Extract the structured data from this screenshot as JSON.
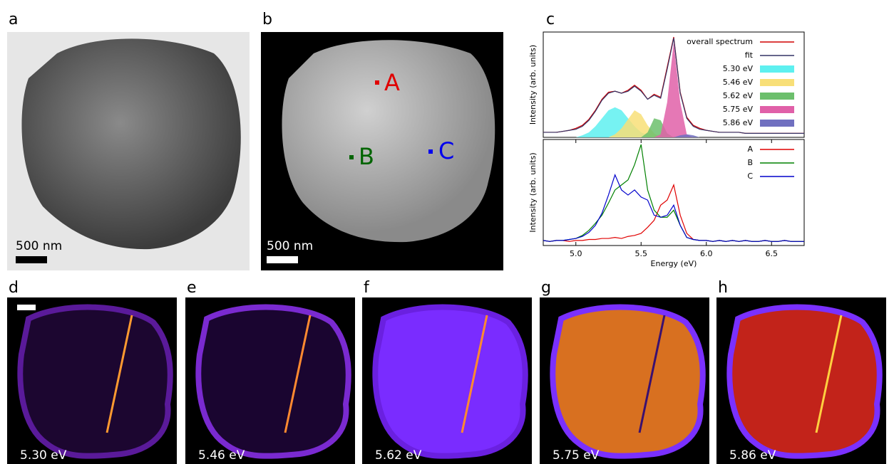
{
  "panels": {
    "a": {
      "letter": "a",
      "scale_bar": "500 nm"
    },
    "b": {
      "letter": "b",
      "scale_bar": "500 nm",
      "markers": [
        "A",
        "B",
        "C"
      ]
    },
    "c": {
      "letter": "c"
    },
    "maps": [
      {
        "letter": "d",
        "label": "5.30 eV"
      },
      {
        "letter": "e",
        "label": "5.46 eV"
      },
      {
        "letter": "f",
        "label": "5.62 eV"
      },
      {
        "letter": "g",
        "label": "5.75 eV"
      },
      {
        "letter": "h",
        "label": "5.86 eV"
      }
    ]
  },
  "chart_data": [
    {
      "type": "line",
      "ylabel": "Intensity (arb. units)",
      "legend": "upper right",
      "x": [
        4.75,
        4.8,
        4.85,
        4.9,
        4.95,
        5.0,
        5.05,
        5.1,
        5.15,
        5.2,
        5.25,
        5.3,
        5.35,
        5.4,
        5.45,
        5.5,
        5.55,
        5.6,
        5.65,
        5.7,
        5.75,
        5.8,
        5.85,
        5.9,
        5.95,
        6.0,
        6.05,
        6.1,
        6.15,
        6.2,
        6.25,
        6.3,
        6.35,
        6.4,
        6.45,
        6.5,
        6.55,
        6.6,
        6.65,
        6.7,
        6.75
      ],
      "xlim": [
        4.75,
        6.75
      ],
      "ylim": [
        0,
        1.05
      ],
      "series": [
        {
          "name": "overall spectrum",
          "color": "#d00000",
          "style": "line",
          "values": [
            0.05,
            0.05,
            0.05,
            0.06,
            0.07,
            0.09,
            0.12,
            0.18,
            0.27,
            0.38,
            0.45,
            0.46,
            0.44,
            0.47,
            0.52,
            0.47,
            0.38,
            0.43,
            0.4,
            0.7,
            1.0,
            0.45,
            0.2,
            0.12,
            0.09,
            0.07,
            0.06,
            0.05,
            0.05,
            0.05,
            0.05,
            0.04,
            0.04,
            0.04,
            0.04,
            0.04,
            0.04,
            0.04,
            0.04,
            0.04,
            0.04
          ]
        },
        {
          "name": "fit",
          "color": "#333366",
          "style": "line",
          "values": [
            0.05,
            0.05,
            0.05,
            0.06,
            0.07,
            0.08,
            0.11,
            0.17,
            0.26,
            0.37,
            0.44,
            0.46,
            0.44,
            0.46,
            0.51,
            0.46,
            0.38,
            0.42,
            0.39,
            0.68,
            0.99,
            0.44,
            0.19,
            0.11,
            0.08,
            0.07,
            0.06,
            0.05,
            0.05,
            0.05,
            0.05,
            0.04,
            0.04,
            0.04,
            0.04,
            0.04,
            0.04,
            0.04,
            0.04,
            0.04,
            0.04
          ]
        },
        {
          "name": "5.30 eV",
          "color": "#5ef0f0",
          "style": "area",
          "values": [
            0,
            0,
            0,
            0,
            0,
            0,
            0.02,
            0.05,
            0.11,
            0.19,
            0.27,
            0.3,
            0.27,
            0.19,
            0.11,
            0.05,
            0.02,
            0,
            0,
            0,
            0,
            0,
            0,
            0,
            0,
            0,
            0,
            0,
            0,
            0,
            0,
            0,
            0,
            0,
            0,
            0,
            0,
            0,
            0,
            0,
            0
          ]
        },
        {
          "name": "5.46 eV",
          "color": "#f8df78",
          "style": "area",
          "values": [
            0,
            0,
            0,
            0,
            0,
            0,
            0,
            0,
            0,
            0,
            0,
            0.03,
            0.09,
            0.18,
            0.27,
            0.23,
            0.12,
            0.04,
            0,
            0,
            0,
            0,
            0,
            0,
            0,
            0,
            0,
            0,
            0,
            0,
            0,
            0,
            0,
            0,
            0,
            0,
            0,
            0,
            0,
            0,
            0
          ]
        },
        {
          "name": "5.62 eV",
          "color": "#6cbf6c",
          "style": "area",
          "values": [
            0,
            0,
            0,
            0,
            0,
            0,
            0,
            0,
            0,
            0,
            0,
            0,
            0,
            0,
            0,
            0,
            0.05,
            0.19,
            0.17,
            0.04,
            0,
            0,
            0,
            0,
            0,
            0,
            0,
            0,
            0,
            0,
            0,
            0,
            0,
            0,
            0,
            0,
            0,
            0,
            0,
            0,
            0
          ]
        },
        {
          "name": "5.75 eV",
          "color": "#e060a8",
          "style": "area",
          "values": [
            0,
            0,
            0,
            0,
            0,
            0,
            0,
            0,
            0,
            0,
            0,
            0,
            0,
            0,
            0,
            0,
            0,
            0,
            0.03,
            0.35,
            0.95,
            0.35,
            0.03,
            0,
            0,
            0,
            0,
            0,
            0,
            0,
            0,
            0,
            0,
            0,
            0,
            0,
            0,
            0,
            0,
            0,
            0
          ]
        },
        {
          "name": "5.86 eV",
          "color": "#7070c0",
          "style": "area",
          "values": [
            0,
            0,
            0,
            0,
            0,
            0,
            0,
            0,
            0,
            0,
            0,
            0,
            0,
            0,
            0,
            0,
            0,
            0,
            0,
            0,
            0,
            0.02,
            0.03,
            0.02,
            0,
            0,
            0,
            0,
            0,
            0,
            0,
            0,
            0,
            0,
            0,
            0,
            0,
            0,
            0,
            0,
            0
          ]
        }
      ]
    },
    {
      "type": "line",
      "ylabel": "Intensity (arb. units)",
      "xlabel": "Energy (eV)",
      "legend": "upper right",
      "x": [
        4.75,
        4.8,
        4.85,
        4.9,
        4.95,
        5.0,
        5.05,
        5.1,
        5.15,
        5.2,
        5.25,
        5.3,
        5.35,
        5.4,
        5.45,
        5.5,
        5.55,
        5.6,
        5.65,
        5.7,
        5.75,
        5.8,
        5.85,
        5.9,
        5.95,
        6.0,
        6.05,
        6.1,
        6.15,
        6.2,
        6.25,
        6.3,
        6.35,
        6.4,
        6.45,
        6.5,
        6.55,
        6.6,
        6.65,
        6.7,
        6.75
      ],
      "xlim": [
        4.75,
        6.75
      ],
      "ylim": [
        0,
        1.05
      ],
      "xticks": [
        {
          "value": 5,
          "label": "5.0"
        },
        5.5,
        {
          "value": 6,
          "label": "6.0"
        },
        6.5
      ],
      "series": [
        {
          "name": "A",
          "color": "#e00000",
          "style": "line",
          "values": [
            0.05,
            0.04,
            0.05,
            0.05,
            0.04,
            0.05,
            0.05,
            0.06,
            0.06,
            0.07,
            0.07,
            0.08,
            0.07,
            0.09,
            0.1,
            0.12,
            0.18,
            0.25,
            0.4,
            0.45,
            0.6,
            0.3,
            0.12,
            0.06,
            0.05,
            0.05,
            0.04,
            0.05,
            0.04,
            0.05,
            0.04,
            0.05,
            0.04,
            0.04,
            0.05,
            0.04,
            0.04,
            0.05,
            0.04,
            0.04,
            0.04
          ]
        },
        {
          "name": "B",
          "color": "#008000",
          "style": "line",
          "values": [
            0.05,
            0.04,
            0.05,
            0.05,
            0.06,
            0.07,
            0.1,
            0.15,
            0.22,
            0.3,
            0.42,
            0.55,
            0.6,
            0.65,
            0.8,
            1.0,
            0.55,
            0.35,
            0.28,
            0.28,
            0.35,
            0.2,
            0.08,
            0.06,
            0.05,
            0.05,
            0.04,
            0.05,
            0.04,
            0.05,
            0.04,
            0.05,
            0.04,
            0.04,
            0.05,
            0.04,
            0.04,
            0.05,
            0.04,
            0.04,
            0.04
          ]
        },
        {
          "name": "C",
          "color": "#0000cc",
          "style": "line",
          "values": [
            0.05,
            0.04,
            0.05,
            0.05,
            0.06,
            0.07,
            0.09,
            0.13,
            0.2,
            0.32,
            0.5,
            0.7,
            0.55,
            0.5,
            0.55,
            0.48,
            0.45,
            0.3,
            0.28,
            0.3,
            0.4,
            0.2,
            0.08,
            0.06,
            0.05,
            0.05,
            0.04,
            0.05,
            0.04,
            0.05,
            0.04,
            0.05,
            0.04,
            0.04,
            0.05,
            0.04,
            0.04,
            0.05,
            0.04,
            0.04,
            0.04
          ]
        }
      ]
    }
  ]
}
